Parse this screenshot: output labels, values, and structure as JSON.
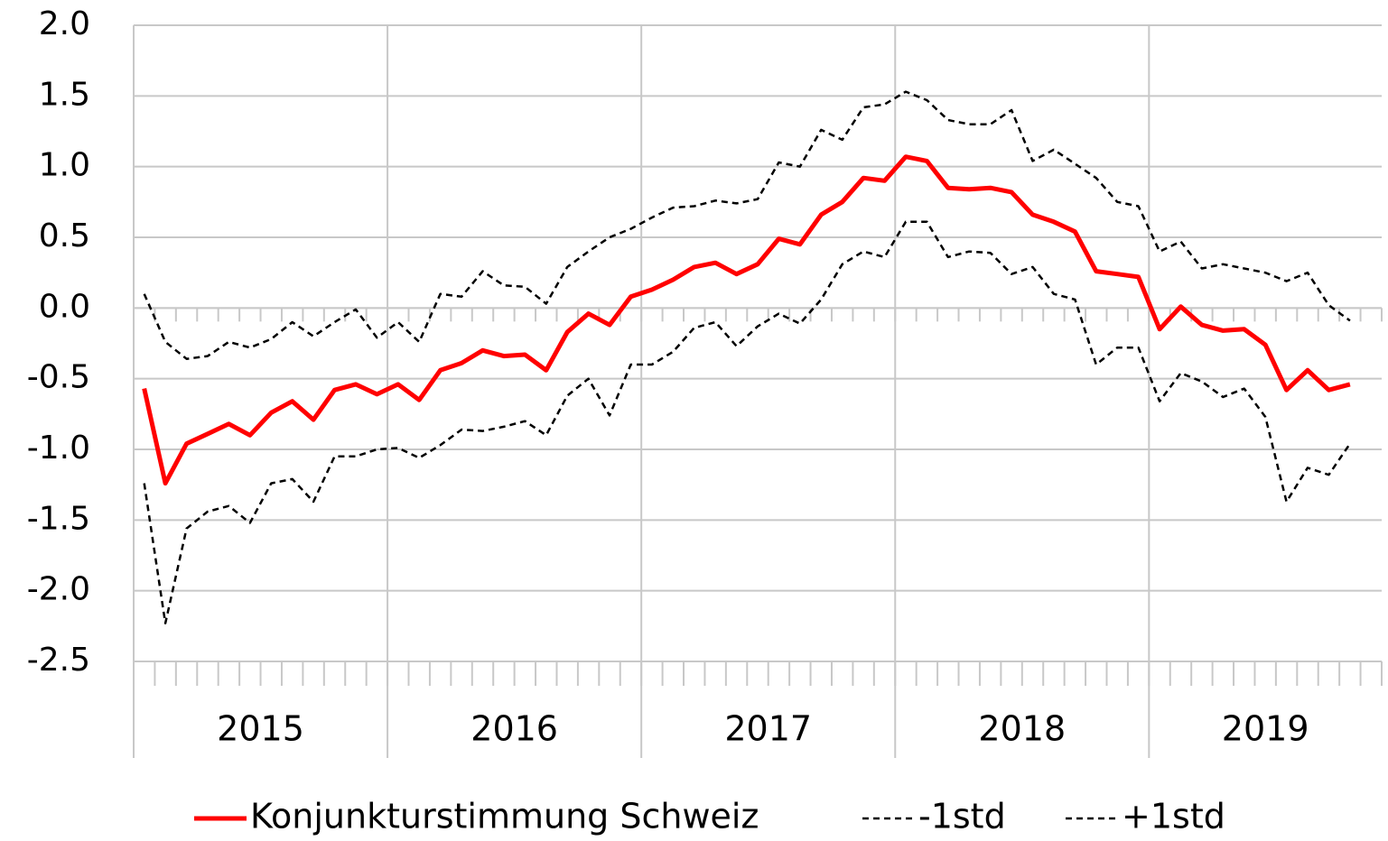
{
  "chart_data": {
    "type": "line",
    "categories": [
      null,
      null,
      null,
      null,
      null,
      null,
      null,
      null,
      null,
      null,
      null,
      null,
      null,
      null,
      null,
      null,
      null,
      null,
      null,
      null,
      null,
      null,
      null,
      null,
      null,
      null,
      null,
      null,
      null,
      null,
      null,
      null,
      null,
      null,
      null,
      null,
      null,
      null,
      null,
      null,
      null,
      null,
      null,
      null,
      null,
      null,
      null,
      null,
      null,
      null,
      null,
      null,
      null,
      null,
      null,
      null,
      null,
      null,
      null
    ],
    "x_groups": [
      {
        "label": "2015",
        "count": 12
      },
      {
        "label": "2016",
        "count": 12
      },
      {
        "label": "2017",
        "count": 12
      },
      {
        "label": "2018",
        "count": 12
      },
      {
        "label": "2019",
        "count": 11
      }
    ],
    "ylim": [
      -2.5,
      2.0
    ],
    "yticks": [
      {
        "value": 2.0,
        "label": "2.0"
      },
      1.5,
      {
        "value": 1.0,
        "label": "1.0"
      },
      0.5,
      {
        "value": 0.0,
        "label": "0.0"
      },
      -0.5,
      {
        "value": -1.0,
        "label": "-1.0"
      },
      -1.5,
      {
        "value": -2.0,
        "label": "-2.0"
      },
      -2.5
    ],
    "grid": true,
    "legend": "bottom",
    "series": [
      {
        "name": "Konjunkturstimmung Schweiz",
        "color": "#ff0000",
        "dash": false,
        "values": [
          -0.57,
          -1.24,
          -0.96,
          -0.89,
          -0.82,
          -0.9,
          -0.74,
          -0.66,
          -0.79,
          -0.58,
          -0.54,
          -0.61,
          -0.54,
          -0.65,
          -0.44,
          -0.39,
          -0.3,
          -0.34,
          -0.33,
          -0.44,
          -0.17,
          -0.04,
          -0.12,
          0.08,
          0.13,
          0.2,
          0.29,
          0.32,
          0.24,
          0.31,
          0.49,
          0.45,
          0.66,
          0.75,
          0.92,
          0.9,
          1.07,
          1.04,
          0.85,
          0.84,
          0.85,
          0.82,
          0.66,
          0.61,
          0.54,
          0.26,
          0.24,
          0.22,
          -0.15,
          0.01,
          -0.12,
          -0.16,
          -0.15,
          -0.26,
          -0.58,
          -0.44,
          -0.58,
          -0.54,
          null
        ]
      },
      {
        "name": "-1std",
        "color": "#000000",
        "dash": true,
        "values": [
          -1.24,
          -2.23,
          -1.56,
          -1.44,
          -1.4,
          -1.52,
          -1.24,
          -1.21,
          -1.37,
          -1.05,
          -1.05,
          -1.0,
          -0.99,
          -1.06,
          -0.97,
          -0.86,
          -0.87,
          -0.84,
          -0.8,
          -0.9,
          -0.62,
          -0.5,
          -0.76,
          -0.4,
          -0.4,
          -0.31,
          -0.14,
          -0.1,
          -0.27,
          -0.13,
          -0.04,
          -0.11,
          0.06,
          0.31,
          0.4,
          0.36,
          0.61,
          0.61,
          0.36,
          0.4,
          0.39,
          0.24,
          0.29,
          0.1,
          0.06,
          -0.4,
          -0.28,
          -0.28,
          -0.66,
          -0.46,
          -0.52,
          -0.63,
          -0.57,
          -0.77,
          -1.37,
          -1.13,
          -1.18,
          -0.96,
          null
        ]
      },
      {
        "name": "+1std",
        "color": "#000000",
        "dash": true,
        "values": [
          0.1,
          -0.24,
          -0.36,
          -0.34,
          -0.24,
          -0.28,
          -0.22,
          -0.1,
          -0.2,
          -0.1,
          -0.01,
          -0.21,
          -0.1,
          -0.24,
          0.1,
          0.08,
          0.26,
          0.16,
          0.15,
          0.03,
          0.29,
          0.4,
          0.5,
          0.56,
          0.64,
          0.71,
          0.72,
          0.76,
          0.74,
          0.77,
          1.03,
          1.0,
          1.26,
          1.19,
          1.42,
          1.44,
          1.53,
          1.47,
          1.33,
          1.3,
          1.3,
          1.4,
          1.04,
          1.12,
          1.02,
          0.92,
          0.75,
          0.72,
          0.4,
          0.47,
          0.28,
          0.31,
          0.28,
          0.25,
          0.19,
          0.25,
          0.02,
          -0.09,
          null
        ]
      }
    ]
  }
}
